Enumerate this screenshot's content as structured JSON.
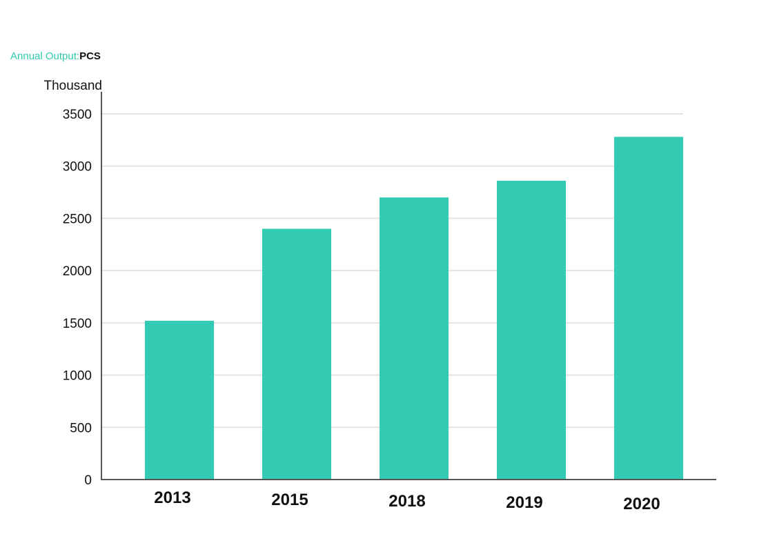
{
  "chart_data": {
    "type": "bar",
    "title": "Annual Output:",
    "title_unit": "PCS",
    "ylabel": "Thousand",
    "xlabel": "",
    "categories": [
      "2013",
      "2015",
      "2018",
      "2019",
      "2020"
    ],
    "values": [
      1520,
      2400,
      2700,
      2860,
      3280
    ],
    "ylim": [
      0,
      3500
    ],
    "yticks": [
      0,
      500,
      1000,
      1500,
      2000,
      2500,
      3000,
      3500
    ],
    "grid": true,
    "legend": "none",
    "bar_color": "#33cbb4"
  }
}
